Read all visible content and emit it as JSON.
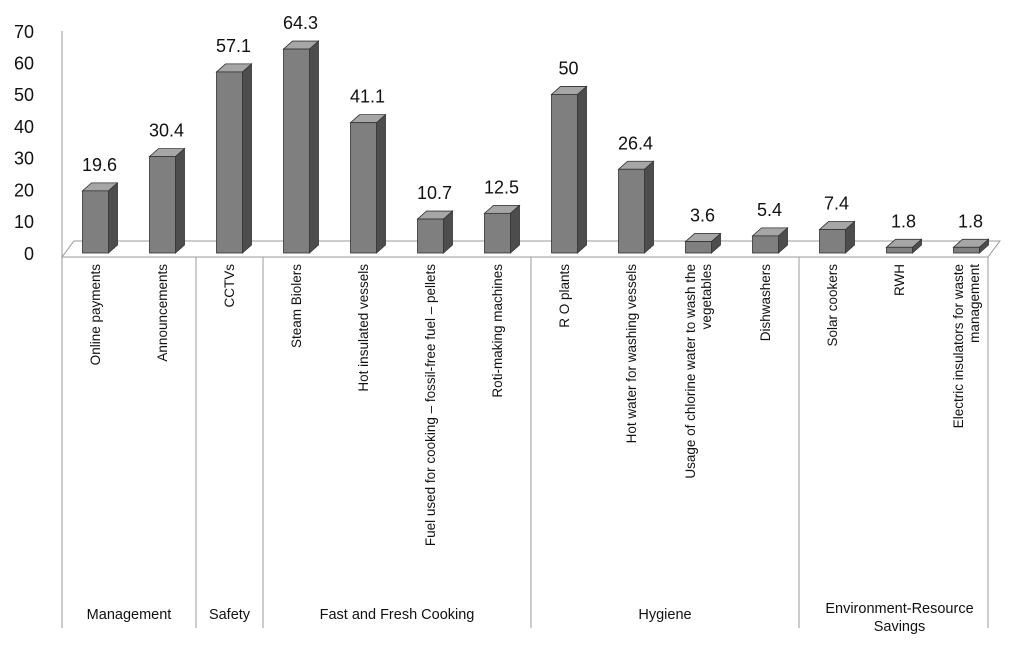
{
  "chart_data": {
    "type": "bar3d",
    "groups": [
      {
        "name": "Management",
        "categories": [
          "Online payments",
          "Announcements"
        ],
        "values": [
          19.6,
          30.4
        ]
      },
      {
        "name": "Safety",
        "categories": [
          "CCTVs"
        ],
        "values": [
          57.1
        ]
      },
      {
        "name": "Fast and Fresh Cooking",
        "categories": [
          "Steam Biolers",
          "Hot insulated vessels",
          "Fuel used for cooking – fossil-free fuel – pellets",
          "Roti-making machines"
        ],
        "values": [
          64.3,
          41.1,
          10.7,
          12.5
        ]
      },
      {
        "name": "Hygiene",
        "categories": [
          "R O plants",
          "Hot water for washing vessels",
          "Usage of chlorine water to wash the vegetables",
          "Dishwashers"
        ],
        "values": [
          50,
          26.4,
          3.6,
          5.4
        ]
      },
      {
        "name": "Environment-Resource Savings",
        "categories": [
          "Solar cookers",
          "RWH",
          "Electric insulators for waste management"
        ],
        "values": [
          7.4,
          1.8,
          1.8
        ]
      }
    ],
    "color": "#7f7f7f",
    "ylim": [
      0,
      70
    ],
    "yticks": [
      0,
      10,
      20,
      30,
      40,
      50,
      60,
      70
    ],
    "grid": false
  }
}
